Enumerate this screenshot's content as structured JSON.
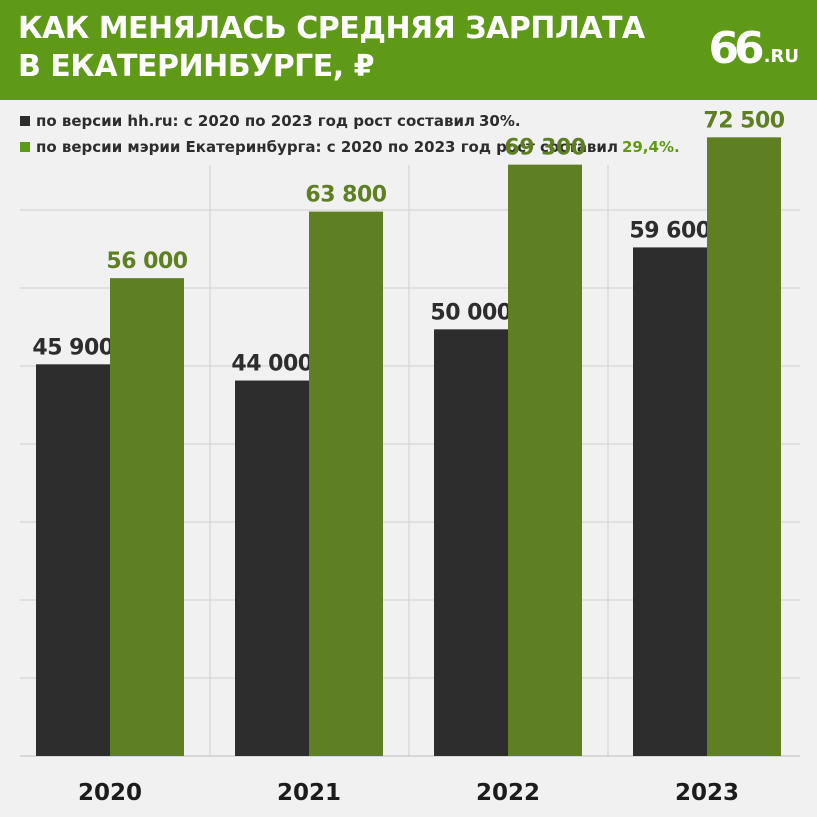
{
  "header": {
    "title_line1": "КАК МЕНЯЛАСЬ СРЕДНЯЯ ЗАРПЛАТА",
    "title_line2": "В ЕКАТЕРИНБУРГЕ, ₽",
    "logo_number": "66",
    "logo_suffix": ".RU"
  },
  "legend": [
    {
      "text": "по версии hh.ru: с 2020 по 2023 год рост составил",
      "highlight": "30%.",
      "color": "#2e2d2d"
    },
    {
      "text": "по версии мэрии Екатеринбурга: с 2020 по 2023 год рост составил",
      "highlight": "29,4%.",
      "color": "#5e9a18"
    }
  ],
  "colors": {
    "header_bg": "#5e9a18",
    "series_dark": "#2e2d2d",
    "series_green": "#5e7f22",
    "label_green": "#5e7f22",
    "grid": "#cfcfcf",
    "background": "#f1f1f1"
  },
  "chart_data": {
    "type": "bar",
    "title": "КАК МЕНЯЛАСЬ СРЕДНЯЯ ЗАРПЛАТА В ЕКАТЕРИНБУРГЕ, ₽",
    "categories": [
      "2020",
      "2021",
      "2022",
      "2023"
    ],
    "series": [
      {
        "name": "по версии hh.ru",
        "values": [
          45900,
          44000,
          50000,
          59600
        ],
        "labels": [
          "45 900",
          "44 000",
          "50 000",
          "59 600"
        ]
      },
      {
        "name": "по версии мэрии Екатеринбурга",
        "values": [
          56000,
          63800,
          69300,
          72500
        ],
        "labels": [
          "56 000",
          "63 800",
          "69 300",
          "72 500"
        ]
      }
    ],
    "ylim": [
      0,
      75000
    ],
    "grid": true,
    "legend_position": "top-left"
  }
}
